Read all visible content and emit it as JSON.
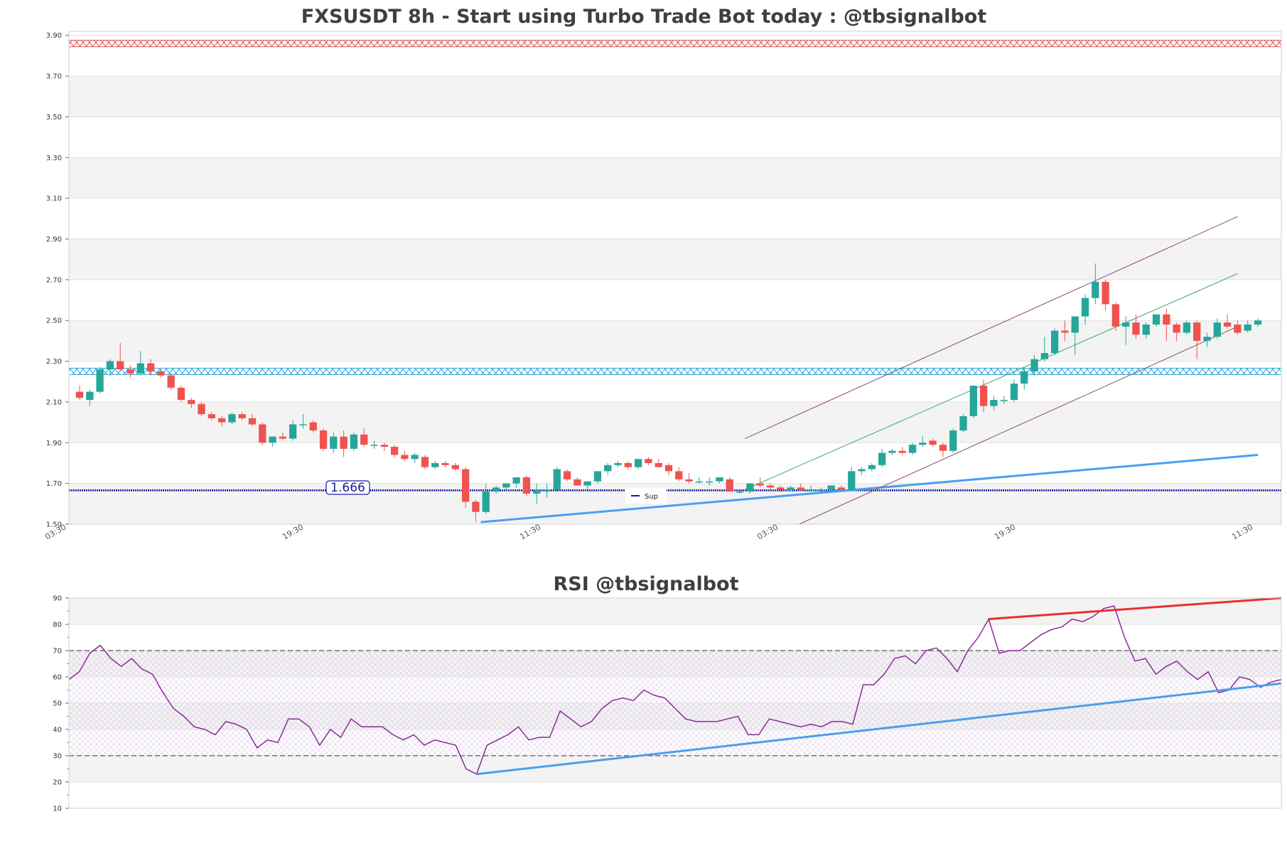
{
  "chart_data": [
    {
      "type": "candlestick",
      "title": "FXSUSDT 8h - Start using Turbo Trade Bot today : @tbsignalbot",
      "ylim": [
        1.5,
        3.92
      ],
      "yticks": [
        "1.50",
        "1.70",
        "1.90",
        "2.10",
        "2.30",
        "2.50",
        "2.70",
        "2.90",
        "3.10",
        "3.30",
        "3.50",
        "3.70",
        "3.90"
      ],
      "xticks": [
        "03:30",
        "19:30",
        "11:30",
        "03:30",
        "19:30",
        "11:30"
      ],
      "grid": "banded",
      "candles": [
        [
          2.15,
          2.18,
          2.11,
          2.12
        ],
        [
          2.11,
          2.16,
          2.08,
          2.15
        ],
        [
          2.15,
          2.27,
          2.14,
          2.26
        ],
        [
          2.26,
          2.31,
          2.23,
          2.3
        ],
        [
          2.3,
          2.39,
          2.25,
          2.26
        ],
        [
          2.26,
          2.28,
          2.22,
          2.24
        ],
        [
          2.24,
          2.35,
          2.23,
          2.29
        ],
        [
          2.29,
          2.31,
          2.23,
          2.25
        ],
        [
          2.25,
          2.26,
          2.22,
          2.23
        ],
        [
          2.23,
          2.24,
          2.16,
          2.17
        ],
        [
          2.17,
          2.18,
          2.1,
          2.11
        ],
        [
          2.11,
          2.12,
          2.07,
          2.09
        ],
        [
          2.09,
          2.1,
          2.03,
          2.04
        ],
        [
          2.04,
          2.05,
          2.01,
          2.02
        ],
        [
          2.02,
          2.03,
          1.98,
          2.0
        ],
        [
          2.0,
          2.05,
          1.99,
          2.04
        ],
        [
          2.04,
          2.05,
          2.01,
          2.02
        ],
        [
          2.02,
          2.04,
          1.98,
          1.99
        ],
        [
          1.99,
          2.0,
          1.89,
          1.9
        ],
        [
          1.9,
          1.93,
          1.88,
          1.93
        ],
        [
          1.93,
          1.95,
          1.91,
          1.92
        ],
        [
          1.92,
          2.01,
          1.91,
          1.99
        ],
        [
          1.99,
          2.04,
          1.97,
          1.99
        ],
        [
          2.0,
          2.01,
          1.95,
          1.96
        ],
        [
          1.96,
          1.97,
          1.86,
          1.87
        ],
        [
          1.87,
          1.95,
          1.85,
          1.93
        ],
        [
          1.93,
          1.96,
          1.83,
          1.87
        ],
        [
          1.87,
          1.95,
          1.86,
          1.94
        ],
        [
          1.94,
          1.97,
          1.88,
          1.89
        ],
        [
          1.89,
          1.91,
          1.87,
          1.89
        ],
        [
          1.89,
          1.9,
          1.86,
          1.88
        ],
        [
          1.88,
          1.89,
          1.83,
          1.84
        ],
        [
          1.84,
          1.86,
          1.81,
          1.82
        ],
        [
          1.82,
          1.85,
          1.8,
          1.84
        ],
        [
          1.83,
          1.84,
          1.77,
          1.78
        ],
        [
          1.78,
          1.81,
          1.77,
          1.8
        ],
        [
          1.8,
          1.81,
          1.78,
          1.79
        ],
        [
          1.79,
          1.8,
          1.76,
          1.77
        ],
        [
          1.77,
          1.78,
          1.58,
          1.61
        ],
        [
          1.61,
          1.62,
          1.51,
          1.56
        ],
        [
          1.56,
          1.7,
          1.55,
          1.66
        ],
        [
          1.66,
          1.69,
          1.65,
          1.68
        ],
        [
          1.68,
          1.7,
          1.66,
          1.7
        ],
        [
          1.7,
          1.73,
          1.68,
          1.73
        ],
        [
          1.73,
          1.74,
          1.64,
          1.65
        ],
        [
          1.65,
          1.7,
          1.6,
          1.67
        ],
        [
          1.66,
          1.7,
          1.63,
          1.67
        ],
        [
          1.67,
          1.78,
          1.66,
          1.77
        ],
        [
          1.76,
          1.77,
          1.71,
          1.72
        ],
        [
          1.72,
          1.73,
          1.69,
          1.69
        ],
        [
          1.69,
          1.71,
          1.67,
          1.71
        ],
        [
          1.71,
          1.76,
          1.7,
          1.76
        ],
        [
          1.76,
          1.8,
          1.74,
          1.79
        ],
        [
          1.79,
          1.81,
          1.78,
          1.8
        ],
        [
          1.8,
          1.81,
          1.77,
          1.78
        ],
        [
          1.78,
          1.82,
          1.77,
          1.82
        ],
        [
          1.82,
          1.83,
          1.79,
          1.8
        ],
        [
          1.8,
          1.82,
          1.78,
          1.78
        ],
        [
          1.79,
          1.8,
          1.74,
          1.76
        ],
        [
          1.76,
          1.78,
          1.71,
          1.72
        ],
        [
          1.72,
          1.75,
          1.7,
          1.71
        ],
        [
          1.71,
          1.73,
          1.7,
          1.71
        ],
        [
          1.71,
          1.73,
          1.69,
          1.71
        ],
        [
          1.71,
          1.73,
          1.7,
          1.73
        ],
        [
          1.72,
          1.73,
          1.66,
          1.66
        ],
        [
          1.66,
          1.67,
          1.65,
          1.66
        ],
        [
          1.66,
          1.7,
          1.65,
          1.7
        ],
        [
          1.7,
          1.73,
          1.68,
          1.69
        ],
        [
          1.69,
          1.7,
          1.67,
          1.68
        ],
        [
          1.68,
          1.69,
          1.66,
          1.67
        ],
        [
          1.67,
          1.69,
          1.66,
          1.68
        ],
        [
          1.68,
          1.7,
          1.66,
          1.67
        ],
        [
          1.67,
          1.69,
          1.66,
          1.67
        ],
        [
          1.67,
          1.68,
          1.66,
          1.67
        ],
        [
          1.67,
          1.69,
          1.66,
          1.69
        ],
        [
          1.68,
          1.69,
          1.66,
          1.67
        ],
        [
          1.67,
          1.78,
          1.66,
          1.76
        ],
        [
          1.76,
          1.78,
          1.74,
          1.77
        ],
        [
          1.77,
          1.8,
          1.76,
          1.79
        ],
        [
          1.79,
          1.87,
          1.78,
          1.85
        ],
        [
          1.85,
          1.87,
          1.84,
          1.86
        ],
        [
          1.86,
          1.88,
          1.84,
          1.85
        ],
        [
          1.85,
          1.9,
          1.84,
          1.89
        ],
        [
          1.89,
          1.93,
          1.88,
          1.9
        ],
        [
          1.91,
          1.92,
          1.88,
          1.89
        ],
        [
          1.89,
          1.9,
          1.83,
          1.86
        ],
        [
          1.86,
          1.97,
          1.85,
          1.96
        ],
        [
          1.96,
          2.04,
          1.95,
          2.03
        ],
        [
          2.03,
          2.18,
          2.02,
          2.18
        ],
        [
          2.18,
          2.21,
          2.05,
          2.08
        ],
        [
          2.08,
          2.13,
          2.06,
          2.11
        ],
        [
          2.11,
          2.13,
          2.09,
          2.11
        ],
        [
          2.11,
          2.21,
          2.1,
          2.19
        ],
        [
          2.19,
          2.27,
          2.16,
          2.25
        ],
        [
          2.25,
          2.33,
          2.23,
          2.31
        ],
        [
          2.31,
          2.42,
          2.3,
          2.34
        ],
        [
          2.34,
          2.46,
          2.33,
          2.45
        ],
        [
          2.45,
          2.5,
          2.4,
          2.44
        ],
        [
          2.44,
          2.52,
          2.33,
          2.52
        ],
        [
          2.52,
          2.63,
          2.48,
          2.61
        ],
        [
          2.61,
          2.78,
          2.58,
          2.69
        ],
        [
          2.69,
          2.7,
          2.55,
          2.58
        ],
        [
          2.58,
          2.59,
          2.45,
          2.47
        ],
        [
          2.47,
          2.52,
          2.38,
          2.49
        ],
        [
          2.49,
          2.53,
          2.41,
          2.43
        ],
        [
          2.43,
          2.49,
          2.41,
          2.48
        ],
        [
          2.48,
          2.53,
          2.47,
          2.53
        ],
        [
          2.53,
          2.56,
          2.4,
          2.48
        ],
        [
          2.48,
          2.49,
          2.4,
          2.44
        ],
        [
          2.44,
          2.5,
          2.43,
          2.49
        ],
        [
          2.49,
          2.5,
          2.31,
          2.4
        ],
        [
          2.4,
          2.44,
          2.37,
          2.42
        ],
        [
          2.42,
          2.51,
          2.41,
          2.49
        ],
        [
          2.49,
          2.53,
          2.46,
          2.47
        ],
        [
          2.48,
          2.5,
          2.43,
          2.44
        ],
        [
          2.45,
          2.5,
          2.44,
          2.48
        ],
        [
          2.48,
          2.51,
          2.47,
          2.5
        ]
      ],
      "levels": [
        {
          "value": 3.86,
          "color": "#e05050"
        },
        {
          "value": 2.25,
          "color": "#2aa7dd"
        },
        {
          "value": 1.666,
          "color": "#1a1aa0",
          "label": "1.666"
        }
      ],
      "legend": {
        "label": "Sup",
        "color": "#1a1aa0"
      },
      "colors": {
        "up": "#26a69a",
        "down": "#ef5350",
        "support": "#4a9fef",
        "channel_outer": "#8a4a6a",
        "channel_mid": "#3aaa6a"
      }
    },
    {
      "type": "line",
      "title": "RSI @tbsignalbot",
      "ylim": [
        10,
        90
      ],
      "yticks": [
        "10",
        "20",
        "30",
        "40",
        "50",
        "60",
        "70",
        "80",
        "90"
      ],
      "guides": [
        30,
        70
      ],
      "color": "#8b2a9a",
      "values": [
        59,
        62,
        69,
        72,
        67,
        64,
        67,
        63,
        61,
        54,
        48,
        45,
        41,
        40,
        38,
        43,
        42,
        40,
        33,
        36,
        35,
        44,
        44,
        41,
        34,
        40,
        37,
        44,
        41,
        41,
        41,
        38,
        36,
        38,
        34,
        36,
        35,
        34,
        25,
        23,
        34,
        36,
        38,
        41,
        36,
        37,
        37,
        47,
        44,
        41,
        43,
        48,
        51,
        52,
        51,
        55,
        53,
        52,
        48,
        44,
        43,
        43,
        43,
        44,
        45,
        38,
        38,
        44,
        43,
        42,
        41,
        42,
        41,
        43,
        43,
        42,
        57,
        57,
        61,
        67,
        68,
        65,
        70,
        71,
        67,
        62,
        70,
        75,
        82,
        69,
        70,
        70,
        73,
        76,
        78,
        79,
        82,
        81,
        83,
        86,
        87,
        75,
        66,
        67,
        61,
        64,
        66,
        62,
        59,
        62,
        54,
        55,
        60,
        59,
        56,
        58,
        59
      ],
      "support_line": [
        [
          39,
          23
        ],
        [
          116,
          57.5
        ]
      ],
      "resistance_line": [
        [
          88,
          82
        ],
        [
          116,
          90
        ]
      ]
    }
  ]
}
